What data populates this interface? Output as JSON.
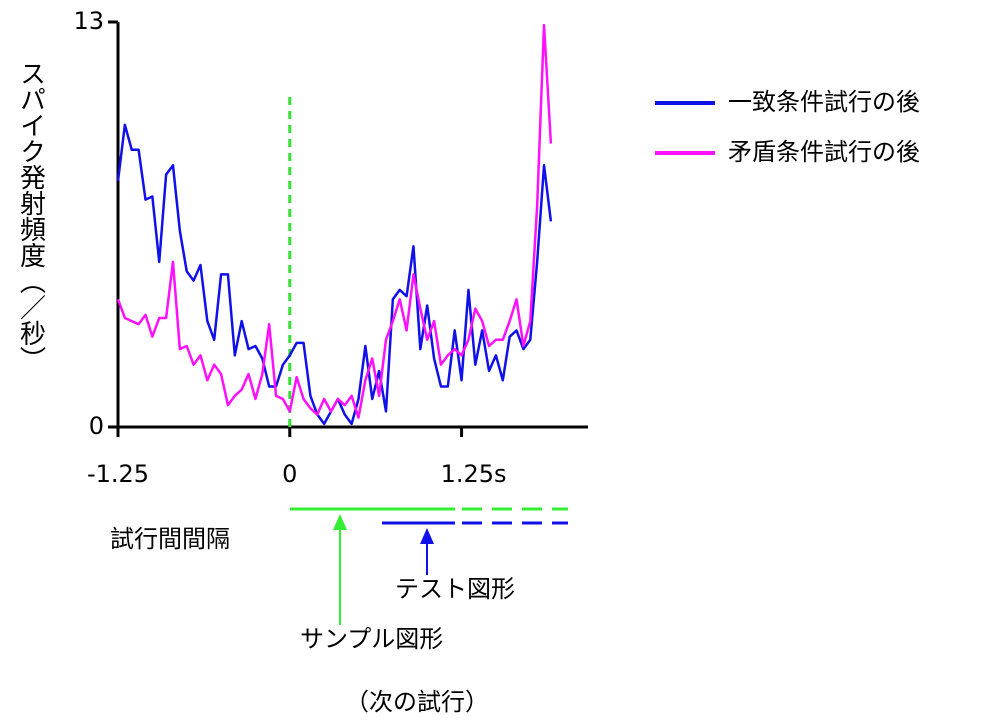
{
  "chart_data": {
    "type": "line",
    "y_label": "スパイク発射頻度（／秒）",
    "x": [
      -1.25,
      -1.2,
      -1.15,
      -1.1,
      -1.05,
      -1.0,
      -0.95,
      -0.9,
      -0.85,
      -0.8,
      -0.75,
      -0.7,
      -0.65,
      -0.6,
      -0.55,
      -0.5,
      -0.45,
      -0.4,
      -0.35,
      -0.3,
      -0.25,
      -0.2,
      -0.15,
      -0.1,
      -0.05,
      0,
      0.05,
      0.1,
      0.15,
      0.2,
      0.25,
      0.3,
      0.35,
      0.4,
      0.45,
      0.5,
      0.55,
      0.6,
      0.65,
      0.7,
      0.75,
      0.8,
      0.85,
      0.9,
      0.95,
      1.0,
      1.05,
      1.1,
      1.15,
      1.2,
      1.25,
      1.3,
      1.35,
      1.4,
      1.45,
      1.5,
      1.55,
      1.6,
      1.65,
      1.7,
      1.75,
      1.8,
      1.85,
      1.9
    ],
    "series": [
      {
        "name": "一致条件試行の後",
        "color": "#1010e8",
        "values": [
          7.9,
          9.7,
          8.9,
          8.9,
          7.3,
          7.4,
          5.3,
          8.1,
          8.4,
          6.3,
          5.0,
          4.7,
          5.2,
          3.4,
          2.8,
          4.9,
          4.9,
          2.3,
          3.4,
          2.5,
          2.6,
          2.2,
          1.3,
          1.3,
          2.0,
          2.3,
          2.7,
          2.7,
          1.0,
          0.4,
          0.1,
          0.5,
          0.9,
          0.4,
          0.1,
          0.9,
          2.6,
          0.9,
          1.8,
          0.5,
          4.1,
          4.4,
          4.2,
          5.8,
          2.5,
          3.9,
          2.2,
          1.3,
          1.3,
          3.1,
          1.5,
          4.4,
          2.0,
          3.1,
          1.8,
          2.3,
          1.5,
          2.9,
          3.1,
          2.5,
          2.8,
          5.3,
          8.4,
          6.6
        ]
      },
      {
        "name": "矛盾条件試行の後",
        "color": "#ff10ff",
        "values": [
          4.1,
          3.5,
          3.4,
          3.3,
          3.6,
          2.9,
          3.5,
          3.5,
          5.3,
          2.5,
          2.6,
          2.0,
          2.3,
          1.5,
          2.0,
          1.7,
          0.7,
          1.0,
          1.2,
          1.7,
          0.9,
          1.7,
          3.3,
          1.0,
          0.9,
          0.5,
          1.6,
          0.9,
          0.6,
          0.4,
          0.9,
          0.5,
          0.9,
          0.7,
          1.0,
          0.3,
          1.5,
          2.2,
          1.0,
          2.8,
          3.4,
          4.1,
          3.1,
          4.9,
          3.8,
          2.8,
          3.4,
          2.0,
          2.3,
          2.5,
          2.3,
          2.8,
          3.8,
          3.4,
          2.6,
          2.8,
          2.8,
          3.4,
          4.1,
          2.6,
          3.4,
          7.1,
          12.9,
          9.1
        ]
      }
    ],
    "xlim": [
      -1.25,
      2.17
    ],
    "xticks": [
      -1.25,
      0,
      {
        "value": 1.25,
        "label": "1.25s"
      }
    ],
    "ylim": [
      0,
      13
    ],
    "yticks": [
      0,
      13
    ],
    "vline": {
      "x": 0,
      "color": "#33dd33"
    },
    "annotations": {
      "interval": "試行間間隔",
      "test": "テスト図形",
      "sample": "サンプル図形",
      "next": "（次の試行）"
    }
  }
}
